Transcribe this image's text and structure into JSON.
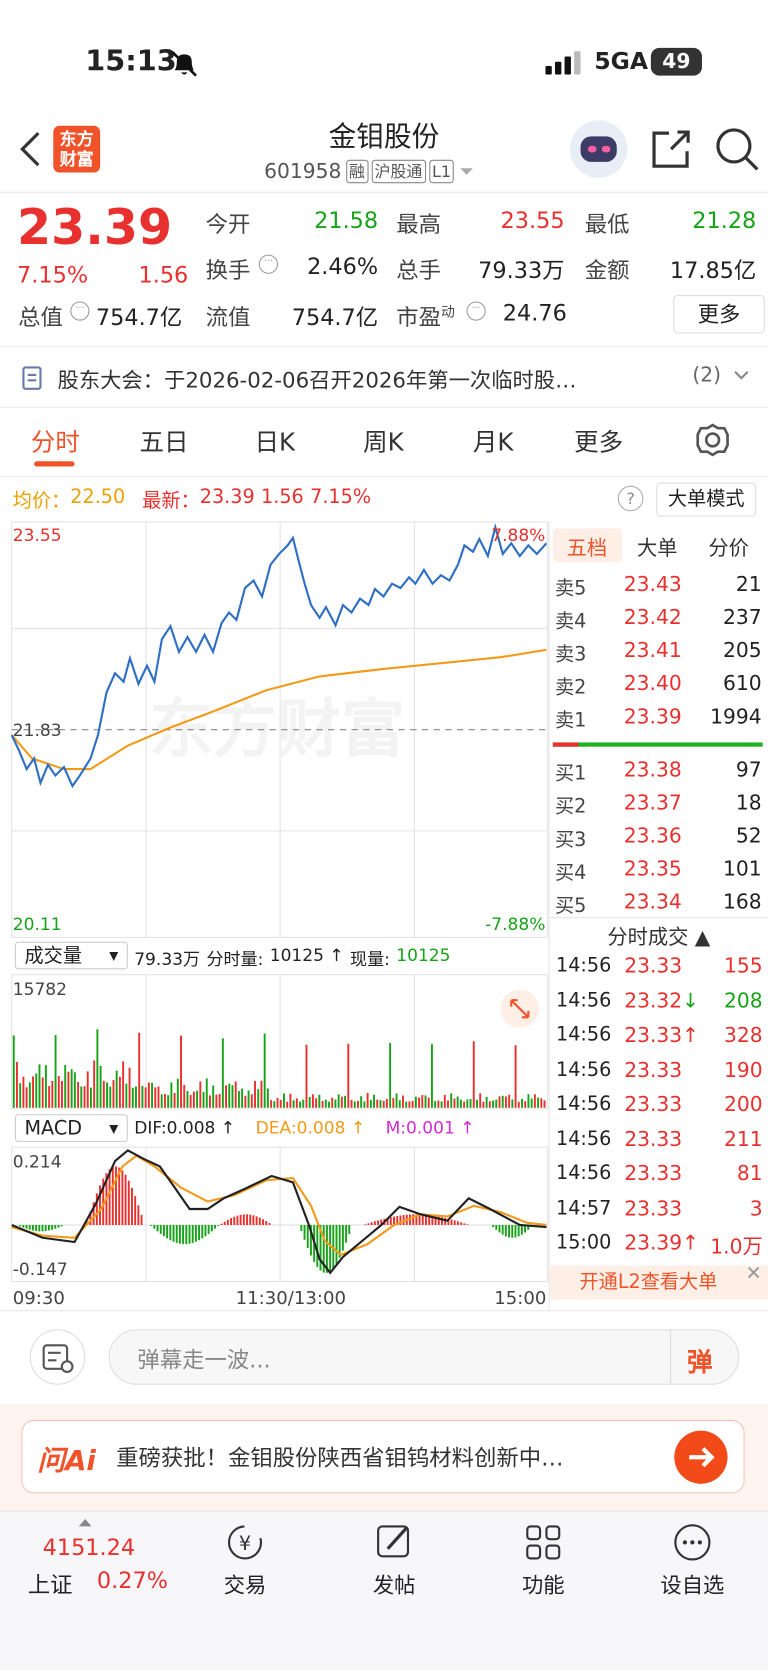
{
  "status": {
    "time": "15:13",
    "network": "5GA",
    "battery": "49"
  },
  "header": {
    "title": "金钼股份",
    "code": "601958",
    "tags": [
      "融",
      "沪股通",
      "L1"
    ],
    "logo": [
      "东方",
      "财富"
    ]
  },
  "quote": {
    "price": "23.39",
    "change_pct": "7.15%",
    "change": "1.56",
    "stats": [
      {
        "label": "今开",
        "value": "21.58",
        "tone": "down"
      },
      {
        "label": "最高",
        "value": "23.55",
        "tone": "up"
      },
      {
        "label": "最低",
        "value": "21.28",
        "tone": "down"
      },
      {
        "label": "换手",
        "value": "2.46%",
        "tone": "flat",
        "info": true
      },
      {
        "label": "总手",
        "value": "79.33万",
        "tone": "flat"
      },
      {
        "label": "金额",
        "value": "17.85亿",
        "tone": "flat"
      }
    ],
    "total_value": {
      "label": "总值",
      "value": "754.7亿"
    },
    "float_value": {
      "label": "流值",
      "value": "754.7亿"
    },
    "pe": {
      "label": "市盈",
      "sup": "动",
      "value": "24.76"
    },
    "more": "更多"
  },
  "notice": {
    "text": "股东大会：于2026-02-06召开2026年第一次临时股…",
    "count": "(2)"
  },
  "tabs": [
    "分时",
    "五日",
    "日K",
    "周K",
    "月K",
    "更多"
  ],
  "summary": {
    "avg_label": "均价：",
    "avg": "22.50",
    "latest_label": "最新：",
    "latest": "23.39",
    "change": "1.56",
    "pct": "7.15%",
    "mode_button": "大单模式"
  },
  "price_chart": {
    "y_top": "23.55",
    "y_mid": "21.83",
    "y_bottom": "20.11",
    "pct_top": "7.88%",
    "pct_bottom": "-7.88%",
    "watermark": "东方财富"
  },
  "volume": {
    "selector": "成交量",
    "total": "79.33万",
    "period_label": "分时量:",
    "period_value": "10125 ↑",
    "now_label": "现量:",
    "now_value": "10125",
    "max": "15782"
  },
  "macd": {
    "selector": "MACD",
    "dif": "DIF:0.008 ↑",
    "dea": "DEA:0.008 ↑",
    "m": "M:0.001 ↑",
    "top": "0.214",
    "bottom": "-0.147"
  },
  "x_axis": [
    "09:30",
    "11:30/13:00",
    "15:00"
  ],
  "order_book": {
    "tabs": [
      "五档",
      "大单",
      "分价"
    ],
    "asks": [
      {
        "label": "卖5",
        "price": "23.43",
        "volume": "21"
      },
      {
        "label": "卖4",
        "price": "23.42",
        "volume": "237"
      },
      {
        "label": "卖3",
        "price": "23.41",
        "volume": "205"
      },
      {
        "label": "卖2",
        "price": "23.40",
        "volume": "610"
      },
      {
        "label": "卖1",
        "price": "23.39",
        "volume": "1994"
      }
    ],
    "bids": [
      {
        "label": "买1",
        "price": "23.38",
        "volume": "97"
      },
      {
        "label": "买2",
        "price": "23.37",
        "volume": "18"
      },
      {
        "label": "买3",
        "price": "23.36",
        "volume": "52"
      },
      {
        "label": "买4",
        "price": "23.35",
        "volume": "101"
      },
      {
        "label": "买5",
        "price": "23.34",
        "volume": "168"
      }
    ]
  },
  "trades": {
    "header": "分时成交 ▲",
    "rows": [
      {
        "time": "14:56",
        "price": "23.33",
        "arrow": "",
        "volume": "155",
        "tone": "up"
      },
      {
        "time": "14:56",
        "price": "23.32",
        "arrow": "↓",
        "volume": "208",
        "tone": "down"
      },
      {
        "time": "14:56",
        "price": "23.33",
        "arrow": "↑",
        "volume": "328",
        "tone": "up"
      },
      {
        "time": "14:56",
        "price": "23.33",
        "arrow": "",
        "volume": "190",
        "tone": "up"
      },
      {
        "time": "14:56",
        "price": "23.33",
        "arrow": "",
        "volume": "200",
        "tone": "up"
      },
      {
        "time": "14:56",
        "price": "23.33",
        "arrow": "",
        "volume": "211",
        "tone": "up"
      },
      {
        "time": "14:56",
        "price": "23.33",
        "arrow": "",
        "volume": "81",
        "tone": "up"
      },
      {
        "time": "14:57",
        "price": "23.33",
        "arrow": "",
        "volume": "3",
        "tone": "up"
      },
      {
        "time": "15:00",
        "price": "23.39",
        "arrow": "↑",
        "volume": "1.0万",
        "tone": "up"
      }
    ],
    "l2": "开通L2查看大单"
  },
  "comment": {
    "placeholder": "弹幕走一波...",
    "button": "弹"
  },
  "ai": {
    "logo": "问Ai",
    "text": "重磅获批！金钼股份陕西省钼钨材料创新中…"
  },
  "bottom_nav": {
    "index_value": "4151.24",
    "index_name": "上证",
    "index_pct": "0.27%",
    "items": [
      "交易",
      "发帖",
      "功能",
      "设自选"
    ]
  }
}
